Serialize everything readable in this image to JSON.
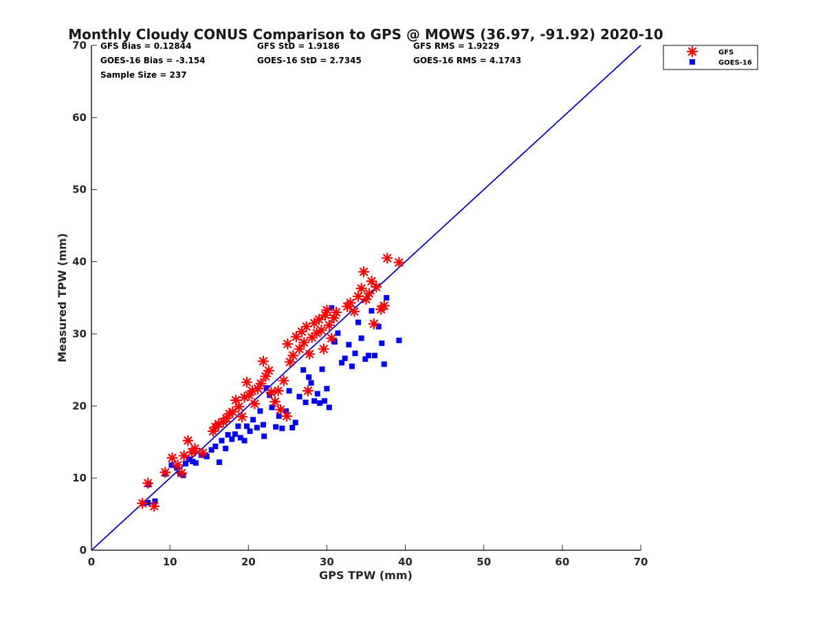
{
  "chart_data": {
    "type": "scatter",
    "title": "Monthly Cloudy CONUS Comparison to GPS @ MOWS (36.97, -91.92) 2020-10",
    "xlabel": "GPS TPW (mm)",
    "ylabel": "Measured TPW (mm)",
    "xlim": [
      0,
      70
    ],
    "ylim": [
      0,
      70
    ],
    "xticks": [
      "0",
      "10",
      "20",
      "30",
      "40",
      "50",
      "60",
      "70"
    ],
    "yticks": [
      "0",
      "10",
      "20",
      "30",
      "40",
      "50",
      "60",
      "70"
    ],
    "grid": false,
    "legend_position": "top-right",
    "stats": {
      "gfs_bias": "GFS Bias = 0.12844",
      "goes_bias": "GOES-16 Bias = -3.154",
      "sample_size": "Sample Size = 237",
      "gfs_std": "GFS StD = 1.9186",
      "goes_std": "GOES-16 StD = 2.7345",
      "gfs_rms": "GFS RMS = 1.9229",
      "goes_rms": "GOES-16 RMS = 4.1743"
    },
    "reference_line": {
      "x": [
        0,
        70
      ],
      "y": [
        0,
        70
      ],
      "color": "#0000cc"
    },
    "series": [
      {
        "name": "GFS",
        "marker": "asterisk",
        "color": "#ff0000",
        "points": [
          [
            6.5,
            6.5
          ],
          [
            7.2,
            9.3
          ],
          [
            8.0,
            6.1
          ],
          [
            9.4,
            10.8
          ],
          [
            10.3,
            12.8
          ],
          [
            11.0,
            11.8
          ],
          [
            11.5,
            10.7
          ],
          [
            11.8,
            13.1
          ],
          [
            12.3,
            15.2
          ],
          [
            12.8,
            13.6
          ],
          [
            13.2,
            14.1
          ],
          [
            14.2,
            13.5
          ],
          [
            15.5,
            16.5
          ],
          [
            15.8,
            17.1
          ],
          [
            16.2,
            17.5
          ],
          [
            16.8,
            17.8
          ],
          [
            17.2,
            18.3
          ],
          [
            17.6,
            18.9
          ],
          [
            18.0,
            19.2
          ],
          [
            18.4,
            20.8
          ],
          [
            18.8,
            19.9
          ],
          [
            19.2,
            18.5
          ],
          [
            19.5,
            21.2
          ],
          [
            19.8,
            23.3
          ],
          [
            20.1,
            21.5
          ],
          [
            20.5,
            22.1
          ],
          [
            20.8,
            20.3
          ],
          [
            21.2,
            22.4
          ],
          [
            21.6,
            23.1
          ],
          [
            21.9,
            26.2
          ],
          [
            22.2,
            24.1
          ],
          [
            22.6,
            24.9
          ],
          [
            22.9,
            21.9
          ],
          [
            23.4,
            20.6
          ],
          [
            23.8,
            22.1
          ],
          [
            24.1,
            19.5
          ],
          [
            24.5,
            23.5
          ],
          [
            24.9,
            18.6
          ],
          [
            25.0,
            28.6
          ],
          [
            25.3,
            26.1
          ],
          [
            25.7,
            27.0
          ],
          [
            26.1,
            29.6
          ],
          [
            26.5,
            27.9
          ],
          [
            26.8,
            30.3
          ],
          [
            27.1,
            28.8
          ],
          [
            27.4,
            31.0
          ],
          [
            27.6,
            22.1
          ],
          [
            27.8,
            27.2
          ],
          [
            28.1,
            29.5
          ],
          [
            28.4,
            31.5
          ],
          [
            28.7,
            30.1
          ],
          [
            29.0,
            32.0
          ],
          [
            29.3,
            30.5
          ],
          [
            29.6,
            27.9
          ],
          [
            29.8,
            32.6
          ],
          [
            30.0,
            33.3
          ],
          [
            30.3,
            31.2
          ],
          [
            30.6,
            29.4
          ],
          [
            30.9,
            32.2
          ],
          [
            31.2,
            33.0
          ],
          [
            32.6,
            33.8
          ],
          [
            33.0,
            34.3
          ],
          [
            33.5,
            33.1
          ],
          [
            34.0,
            35.2
          ],
          [
            34.4,
            36.3
          ],
          [
            34.7,
            38.6
          ],
          [
            35.0,
            34.8
          ],
          [
            35.4,
            35.6
          ],
          [
            35.7,
            37.3
          ],
          [
            36.0,
            31.4
          ],
          [
            36.3,
            36.5
          ],
          [
            36.9,
            33.4
          ],
          [
            37.3,
            33.9
          ],
          [
            37.7,
            40.5
          ],
          [
            39.2,
            39.9
          ]
        ]
      },
      {
        "name": "GOES-16",
        "marker": "square",
        "color": "#0000ff",
        "points": [
          [
            6.6,
            6.5
          ],
          [
            7.2,
            6.6
          ],
          [
            7.3,
            9.1
          ],
          [
            8.1,
            6.8
          ],
          [
            9.4,
            10.6
          ],
          [
            10.2,
            11.8
          ],
          [
            10.9,
            11.4
          ],
          [
            11.3,
            10.6
          ],
          [
            11.7,
            10.4
          ],
          [
            12.0,
            12.0
          ],
          [
            12.4,
            12.6
          ],
          [
            12.9,
            12.3
          ],
          [
            13.3,
            12.1
          ],
          [
            14.0,
            13.2
          ],
          [
            14.7,
            13.0
          ],
          [
            15.3,
            13.9
          ],
          [
            15.8,
            14.4
          ],
          [
            16.3,
            12.2
          ],
          [
            16.6,
            15.2
          ],
          [
            17.1,
            14.1
          ],
          [
            17.4,
            16.0
          ],
          [
            17.9,
            15.4
          ],
          [
            18.3,
            16.1
          ],
          [
            18.7,
            17.2
          ],
          [
            19.0,
            15.6
          ],
          [
            19.5,
            15.2
          ],
          [
            19.8,
            17.2
          ],
          [
            20.2,
            16.5
          ],
          [
            20.6,
            18.1
          ],
          [
            21.1,
            17.0
          ],
          [
            21.5,
            19.3
          ],
          [
            21.9,
            17.4
          ],
          [
            22.0,
            15.8
          ],
          [
            22.3,
            22.5
          ],
          [
            22.7,
            21.5
          ],
          [
            23.0,
            19.8
          ],
          [
            23.5,
            17.1
          ],
          [
            23.9,
            18.6
          ],
          [
            24.3,
            16.9
          ],
          [
            24.8,
            19.3
          ],
          [
            25.2,
            22.1
          ],
          [
            25.6,
            17.0
          ],
          [
            26.0,
            17.7
          ],
          [
            26.5,
            21.3
          ],
          [
            27.0,
            25.0
          ],
          [
            27.3,
            20.5
          ],
          [
            27.7,
            24.0
          ],
          [
            28.0,
            23.2
          ],
          [
            28.4,
            20.7
          ],
          [
            28.8,
            21.7
          ],
          [
            29.1,
            20.4
          ],
          [
            29.4,
            25.1
          ],
          [
            29.7,
            20.7
          ],
          [
            30.0,
            22.4
          ],
          [
            30.3,
            19.8
          ],
          [
            30.6,
            33.6
          ],
          [
            31.0,
            28.9
          ],
          [
            31.4,
            30.1
          ],
          [
            31.9,
            26.0
          ],
          [
            32.3,
            26.6
          ],
          [
            32.8,
            28.5
          ],
          [
            33.2,
            25.5
          ],
          [
            33.6,
            27.3
          ],
          [
            34.0,
            31.6
          ],
          [
            34.4,
            29.4
          ],
          [
            34.9,
            26.5
          ],
          [
            35.3,
            27.0
          ],
          [
            35.7,
            33.2
          ],
          [
            36.1,
            27.0
          ],
          [
            36.6,
            31.0
          ],
          [
            37.0,
            28.7
          ],
          [
            37.3,
            25.8
          ],
          [
            37.6,
            35.0
          ],
          [
            39.2,
            29.1
          ]
        ]
      }
    ]
  }
}
